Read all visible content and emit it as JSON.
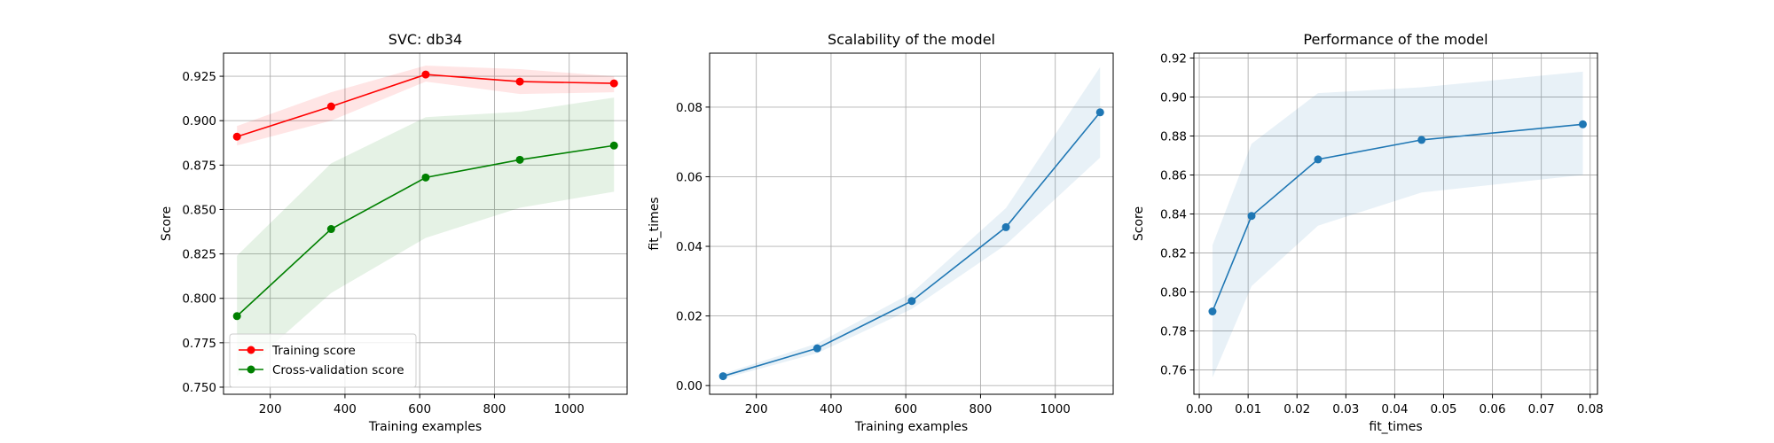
{
  "chart_data": [
    {
      "type": "line",
      "title": "SVC: db34",
      "xlabel": "Training examples",
      "ylabel": "Score",
      "xlim": [
        75,
        1155
      ],
      "ylim": [
        0.746,
        0.938
      ],
      "xticks": [
        200,
        400,
        600,
        800,
        1000
      ],
      "yticks": [
        0.75,
        0.775,
        0.8,
        0.825,
        0.85,
        0.875,
        0.9,
        0.925
      ],
      "ytick_labels": [
        "0.750",
        "0.775",
        "0.800",
        "0.825",
        "0.850",
        "0.875",
        "0.900",
        "0.925"
      ],
      "grid": true,
      "legend_position": "lower-left",
      "x": [
        111,
        363,
        616,
        868,
        1120
      ],
      "series": [
        {
          "name": "Training score",
          "color": "#ff0000",
          "values": [
            0.891,
            0.908,
            0.926,
            0.922,
            0.921
          ],
          "lower": [
            0.886,
            0.9,
            0.922,
            0.915,
            0.916
          ],
          "upper": [
            0.897,
            0.916,
            0.931,
            0.929,
            0.925
          ]
        },
        {
          "name": "Cross-validation score",
          "color": "#008000",
          "values": [
            0.79,
            0.839,
            0.868,
            0.878,
            0.886
          ],
          "lower": [
            0.756,
            0.803,
            0.834,
            0.851,
            0.86
          ],
          "upper": [
            0.824,
            0.876,
            0.902,
            0.905,
            0.913
          ]
        }
      ]
    },
    {
      "type": "line",
      "title": "Scalability of the model",
      "xlabel": "Training examples",
      "ylabel": "fit_times",
      "xlim": [
        75,
        1155
      ],
      "ylim": [
        -0.0025,
        0.0955
      ],
      "xticks": [
        200,
        400,
        600,
        800,
        1000
      ],
      "yticks": [
        0.0,
        0.02,
        0.04,
        0.06,
        0.08
      ],
      "ytick_labels": [
        "0.00",
        "0.02",
        "0.04",
        "0.06",
        "0.08"
      ],
      "grid": true,
      "x": [
        111,
        363,
        616,
        868,
        1120
      ],
      "series": [
        {
          "color": "#1f77b4",
          "values": [
            0.0027,
            0.0107,
            0.0243,
            0.0455,
            0.0785
          ],
          "lower": [
            0.002,
            0.0093,
            0.022,
            0.0405,
            0.0655
          ],
          "upper": [
            0.0034,
            0.0121,
            0.0266,
            0.051,
            0.0915
          ]
        }
      ]
    },
    {
      "type": "line",
      "title": "Performance of the model",
      "xlabel": "fit_times",
      "ylabel": "Score",
      "xlim": [
        -0.0011,
        0.0815
      ],
      "ylim": [
        0.7475,
        0.9225
      ],
      "xticks": [
        0.0,
        0.01,
        0.02,
        0.03,
        0.04,
        0.05,
        0.06,
        0.07,
        0.08
      ],
      "xtick_labels": [
        "0.00",
        "0.01",
        "0.02",
        "0.03",
        "0.04",
        "0.05",
        "0.06",
        "0.07",
        "0.08"
      ],
      "yticks": [
        0.76,
        0.78,
        0.8,
        0.82,
        0.84,
        0.86,
        0.88,
        0.9,
        0.92
      ],
      "ytick_labels": [
        "0.76",
        "0.78",
        "0.80",
        "0.82",
        "0.84",
        "0.86",
        "0.88",
        "0.90",
        "0.92"
      ],
      "grid": true,
      "series": [
        {
          "color": "#1f77b4",
          "x": [
            0.0027,
            0.0107,
            0.0243,
            0.0455,
            0.0785
          ],
          "values": [
            0.79,
            0.839,
            0.868,
            0.878,
            0.886
          ],
          "lower": [
            0.756,
            0.803,
            0.834,
            0.851,
            0.86
          ],
          "upper": [
            0.824,
            0.876,
            0.902,
            0.905,
            0.913
          ]
        }
      ]
    }
  ]
}
